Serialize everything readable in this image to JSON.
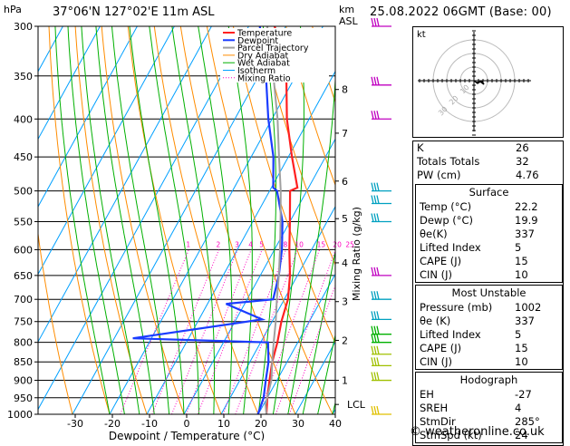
{
  "header": {
    "hpa_label": "hPa",
    "location": "37°06'N  127°02'E  11m  ASL",
    "km_label": "km",
    "asl_label": "ASL",
    "datetime": "25.08.2022  06GMT  (Base: 00)"
  },
  "chart_data": {
    "type": "skew-t",
    "xlabel": "Dewpoint / Temperature (°C)",
    "y_right_label": "Mixing Ratio (g/kg)",
    "x_ticks": [
      -30,
      -20,
      -10,
      0,
      10,
      20,
      30,
      40
    ],
    "x_tick_labels": [
      "-30",
      "-20",
      "-10",
      "0",
      "10",
      "20",
      "30",
      "40"
    ],
    "pressure_levels": [
      300,
      350,
      400,
      450,
      500,
      550,
      600,
      650,
      700,
      750,
      800,
      850,
      900,
      950,
      1000
    ],
    "pressure_labels": [
      "300",
      "350",
      "400",
      "450",
      "500",
      "550",
      "600",
      "650",
      "700",
      "750",
      "800",
      "850",
      "900",
      "950",
      "1000"
    ],
    "km_ticks": [
      {
        "km": 8,
        "p": 365
      },
      {
        "km": 7,
        "p": 418
      },
      {
        "km": 6,
        "p": 485
      },
      {
        "km": 5,
        "p": 545
      },
      {
        "km": 4,
        "p": 625
      },
      {
        "km": 3,
        "p": 705
      },
      {
        "km": 2,
        "p": 795
      },
      {
        "km": 1,
        "p": 900
      }
    ],
    "lcl_label": "LCL",
    "lcl_pressure": 970,
    "mixing_ratio_labels": [
      "1",
      "2",
      "3",
      "4",
      "5",
      "8",
      "10",
      "15",
      "20",
      "25"
    ],
    "mixing_ratio_values": [
      1,
      2,
      3,
      4,
      5,
      8,
      10,
      15,
      20,
      25
    ],
    "legend": [
      "Temperature",
      "Dewpoint",
      "Parcel Trajectory",
      "Dry Adiabat",
      "Wet Adiabat",
      "Isotherm",
      "Mixing Ratio"
    ],
    "series": [
      {
        "name": "Temperature",
        "points": [
          [
            22.2,
            1000
          ],
          [
            20,
            950
          ],
          [
            18,
            900
          ],
          [
            16,
            850
          ],
          [
            14.5,
            800
          ],
          [
            12.5,
            750
          ],
          [
            11,
            700
          ],
          [
            8,
            650
          ],
          [
            4,
            600
          ],
          [
            0,
            550
          ],
          [
            -4.5,
            500
          ],
          [
            -3,
            495
          ],
          [
            -9,
            450
          ],
          [
            -16,
            400
          ],
          [
            -22.5,
            350
          ],
          [
            -33,
            300
          ]
        ]
      },
      {
        "name": "Dewpoint",
        "points": [
          [
            19.9,
            1000
          ],
          [
            19,
            950
          ],
          [
            17,
            900
          ],
          [
            15,
            850
          ],
          [
            12,
            800
          ],
          [
            -25,
            790
          ],
          [
            7,
            745
          ],
          [
            -5,
            710
          ],
          [
            7,
            700
          ],
          [
            5,
            650
          ],
          [
            2,
            600
          ],
          [
            -2,
            550
          ],
          [
            -8,
            500
          ],
          [
            -9.5,
            495
          ],
          [
            -14,
            450
          ],
          [
            -21,
            400
          ],
          [
            -28,
            350
          ],
          [
            -37,
            300
          ]
        ]
      },
      {
        "name": "Parcel Trajectory",
        "points": [
          [
            22.2,
            1000
          ],
          [
            20.5,
            970
          ],
          [
            18.5,
            900
          ],
          [
            16,
            850
          ],
          [
            13.5,
            800
          ],
          [
            11,
            750
          ],
          [
            8,
            700
          ],
          [
            5,
            650
          ],
          [
            1.5,
            600
          ],
          [
            -2.5,
            550
          ],
          [
            -7,
            500
          ],
          [
            -12.5,
            450
          ],
          [
            -18.5,
            400
          ],
          [
            -26,
            350
          ],
          [
            -35,
            300
          ]
        ]
      }
    ]
  },
  "hodograph": {
    "label": "kt",
    "ring_labels": [
      "10",
      "20",
      "30"
    ]
  },
  "indices": [
    {
      "label": "K",
      "value": "26"
    },
    {
      "label": "Totals Totals",
      "value": "32"
    },
    {
      "label": "PW (cm)",
      "value": "4.76"
    }
  ],
  "surface": {
    "title": "Surface",
    "rows": [
      {
        "label": "Temp (°C)",
        "value": "22.2"
      },
      {
        "label": "Dewp (°C)",
        "value": "19.9"
      },
      {
        "label": "θe(K)",
        "value": "337"
      },
      {
        "label": "Lifted Index",
        "value": "5"
      },
      {
        "label": "CAPE (J)",
        "value": "15"
      },
      {
        "label": "CIN (J)",
        "value": "10"
      }
    ]
  },
  "most_unstable": {
    "title": "Most Unstable",
    "rows": [
      {
        "label": "Pressure (mb)",
        "value": "1002"
      },
      {
        "label": "θe (K)",
        "value": "337"
      },
      {
        "label": "Lifted Index",
        "value": "5"
      },
      {
        "label": "CAPE (J)",
        "value": "15"
      },
      {
        "label": "CIN (J)",
        "value": "10"
      }
    ]
  },
  "hodograph_table": {
    "title": "Hodograph",
    "rows": [
      {
        "label": "EH",
        "value": "-27"
      },
      {
        "label": "SREH",
        "value": "4"
      },
      {
        "label": "StmDir",
        "value": "285°"
      },
      {
        "label": "StmSpd (kt)",
        "value": "24"
      }
    ]
  },
  "credit": "© weatheronline.co.uk",
  "colors": {
    "temperature": "#ff2020",
    "dewpoint": "#1a3cff",
    "parcel": "#a0a0a0",
    "dry_adiabat": "#ff8c00",
    "wet_adiabat": "#00b000",
    "isotherm": "#00a0ff",
    "mixing_ratio": "#ff00c0"
  }
}
